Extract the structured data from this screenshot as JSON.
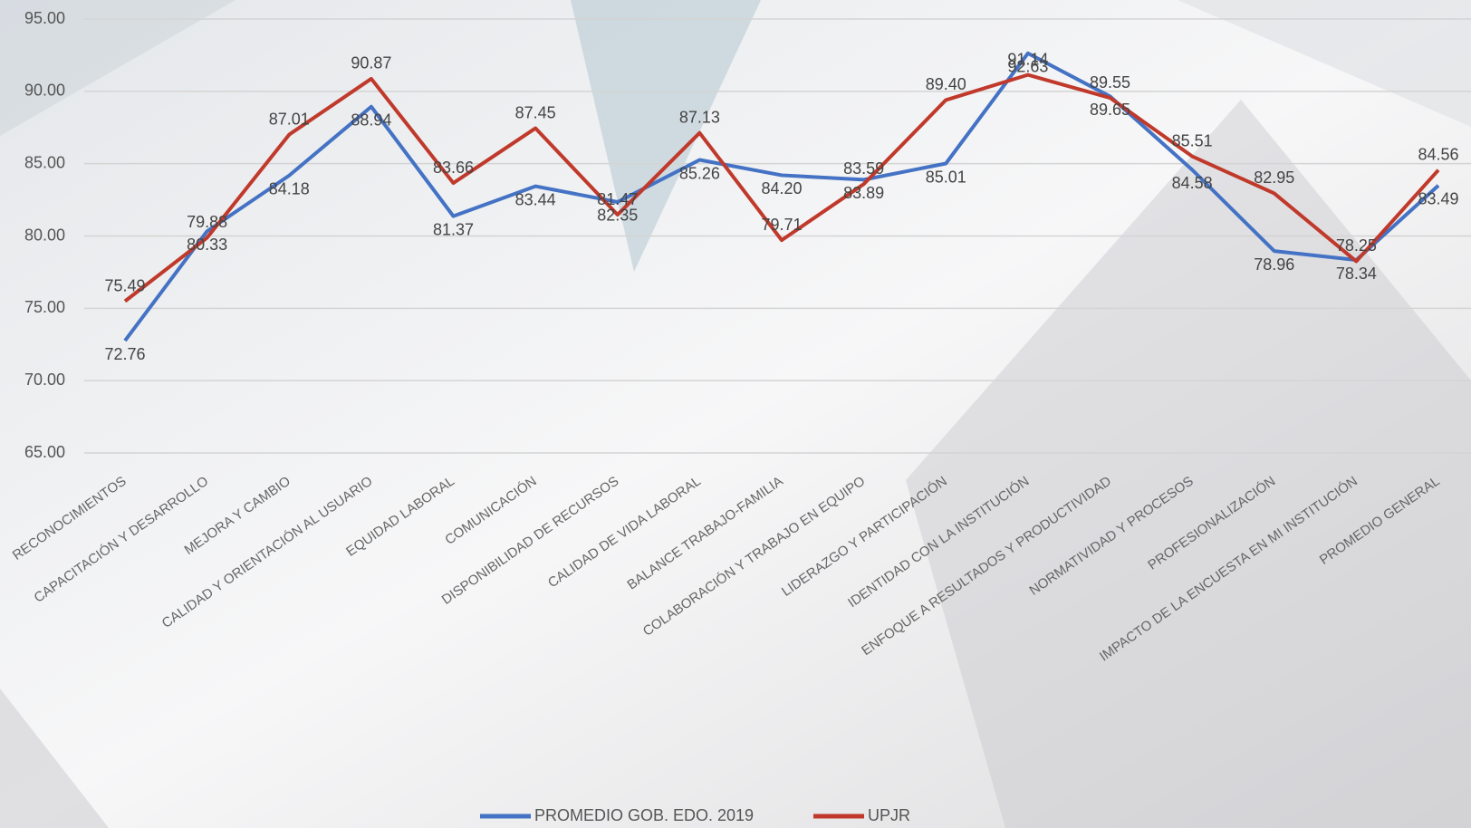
{
  "chart_data": {
    "type": "line",
    "categories": [
      "RECONOCIMIENTOS",
      "CAPACITACIÓN Y DESARROLLO",
      "MEJORA Y CAMBIO",
      "CALIDAD Y ORIENTACIÓN AL USUARIO",
      "EQUIDAD LABORAL",
      "COMUNICACIÓN",
      "DISPONIBILIDAD DE RECURSOS",
      "CALIDAD DE VIDA LABORAL",
      "BALANCE TRABAJO-FAMILIA",
      "COLABORACIÓN Y TRABAJO EN EQUIPO",
      "LIDERAZGO Y PARTICIPACIÓN",
      "IDENTIDAD CON LA INSTITUCIÓN",
      "ENFOQUE A RESULTADOS Y PRODUCTIVIDAD",
      "NORMATIVIDAD Y PROCESOS",
      "PROFESIONALIZACIÓN",
      "IMPACTO DE LA ENCUESTA EN MI INSTITUCIÓN",
      "PROMEDIO GENERAL"
    ],
    "series": [
      {
        "name": "PROMEDIO GOB. EDO. 2019",
        "color": "#4472c4",
        "values": [
          72.76,
          80.33,
          84.18,
          88.94,
          81.37,
          83.44,
          82.35,
          85.26,
          84.2,
          83.89,
          85.01,
          92.63,
          89.65,
          84.58,
          78.96,
          78.34,
          83.49
        ],
        "value_labels": [
          "72.76",
          "80.33",
          "84.18",
          "88.94",
          "81.37",
          "83.44",
          "82.35",
          "85.26",
          "84.20",
          "83.89",
          "85.01",
          "92.63",
          "89.65",
          "84.58",
          "78.96",
          "78.34",
          "83.49"
        ]
      },
      {
        "name": "UPJR",
        "color": "#c0392b",
        "values": [
          75.49,
          79.88,
          87.01,
          90.87,
          83.66,
          87.45,
          81.47,
          87.13,
          79.71,
          83.59,
          89.4,
          91.14,
          89.55,
          85.51,
          82.95,
          78.25,
          84.56
        ],
        "value_labels": [
          "75.49",
          "79.88",
          "87.01",
          "90.87",
          "83.66",
          "87.45",
          "81.47",
          "87.13",
          "79.71",
          "83.59",
          "89.40",
          "91.14",
          "89.55",
          "85.51",
          "82.95",
          "78.25",
          "84.56"
        ]
      }
    ],
    "ylim": [
      65,
      95
    ],
    "yticks": [
      {
        "value": 65,
        "label": "65.00"
      },
      {
        "value": 70,
        "label": "70.00"
      },
      {
        "value": 75,
        "label": "75.00"
      },
      {
        "value": 80,
        "label": "80.00"
      },
      {
        "value": 85,
        "label": "85.00"
      },
      {
        "value": 90,
        "label": "90.00"
      },
      {
        "value": 95,
        "label": "95.00"
      }
    ],
    "grid": true,
    "legend": "bottom"
  }
}
